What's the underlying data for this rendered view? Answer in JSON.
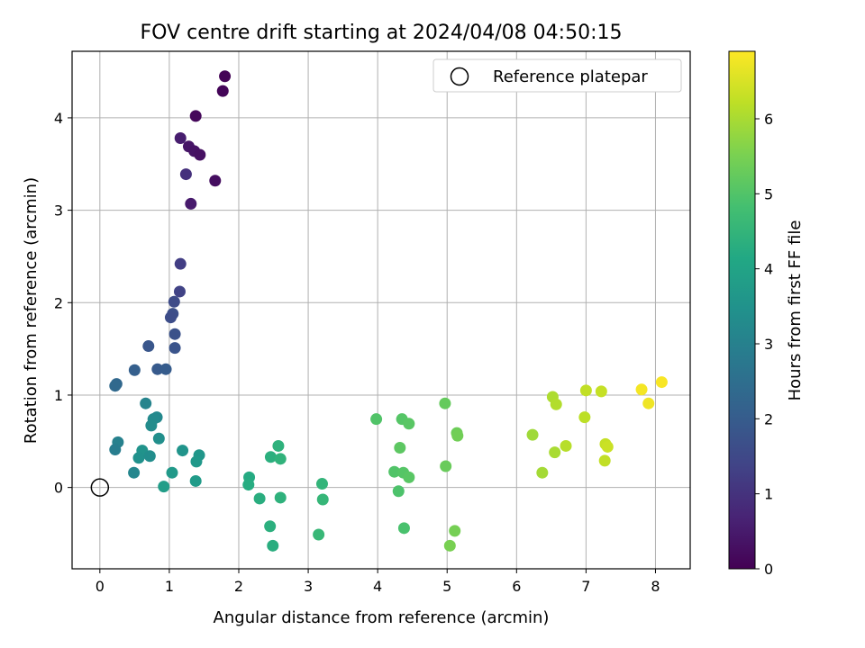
{
  "chart_data": {
    "type": "scatter",
    "title": "FOV centre drift starting at 2024/04/08 04:50:15",
    "xlabel": "Angular distance from reference (arcmin)",
    "ylabel": "Rotation from reference (arcmin)",
    "colorbar_label": "Hours from first FF file",
    "xlim": [
      -0.4,
      8.5
    ],
    "ylim": [
      -0.88,
      4.72
    ],
    "x_ticks": [
      0,
      1,
      2,
      3,
      4,
      5,
      6,
      7,
      8
    ],
    "y_ticks": [
      0,
      1,
      2,
      3,
      4
    ],
    "color_ticks": [
      0,
      1,
      2,
      3,
      4,
      5,
      6
    ],
    "color_range": [
      0,
      6.9
    ],
    "colormap": "viridis",
    "grid": true,
    "legend_position": "top-right",
    "reference": {
      "label": "Reference platepar",
      "x": 0,
      "y": 0
    },
    "points": [
      {
        "x": 1.8,
        "y": 4.45,
        "t": 0.05
      },
      {
        "x": 1.77,
        "y": 4.29,
        "t": 0.08
      },
      {
        "x": 1.38,
        "y": 4.02,
        "t": 0.12
      },
      {
        "x": 1.16,
        "y": 3.78,
        "t": 0.55
      },
      {
        "x": 1.28,
        "y": 3.69,
        "t": 0.4
      },
      {
        "x": 1.36,
        "y": 3.64,
        "t": 0.35
      },
      {
        "x": 1.44,
        "y": 3.6,
        "t": 0.3
      },
      {
        "x": 1.66,
        "y": 3.32,
        "t": 0.25
      },
      {
        "x": 1.24,
        "y": 3.39,
        "t": 0.95
      },
      {
        "x": 1.31,
        "y": 3.07,
        "t": 0.5
      },
      {
        "x": 1.16,
        "y": 2.42,
        "t": 1.25
      },
      {
        "x": 1.15,
        "y": 2.12,
        "t": 1.35
      },
      {
        "x": 1.07,
        "y": 2.01,
        "t": 1.55
      },
      {
        "x": 1.05,
        "y": 1.88,
        "t": 1.65
      },
      {
        "x": 1.02,
        "y": 1.84,
        "t": 1.6
      },
      {
        "x": 1.08,
        "y": 1.66,
        "t": 1.75
      },
      {
        "x": 0.7,
        "y": 1.53,
        "t": 1.85
      },
      {
        "x": 1.08,
        "y": 1.51,
        "t": 1.8
      },
      {
        "x": 0.5,
        "y": 1.27,
        "t": 2.1
      },
      {
        "x": 0.83,
        "y": 1.28,
        "t": 1.95
      },
      {
        "x": 0.95,
        "y": 1.28,
        "t": 2.0
      },
      {
        "x": 0.24,
        "y": 1.12,
        "t": 2.3
      },
      {
        "x": 0.22,
        "y": 1.1,
        "t": 2.35
      },
      {
        "x": 0.66,
        "y": 0.91,
        "t": 3.1
      },
      {
        "x": 0.82,
        "y": 0.76,
        "t": 3.2
      },
      {
        "x": 0.77,
        "y": 0.74,
        "t": 3.25
      },
      {
        "x": 0.74,
        "y": 0.67,
        "t": 3.3
      },
      {
        "x": 0.85,
        "y": 0.53,
        "t": 3.4
      },
      {
        "x": 0.26,
        "y": 0.49,
        "t": 3.0
      },
      {
        "x": 0.22,
        "y": 0.41,
        "t": 2.9
      },
      {
        "x": 0.61,
        "y": 0.4,
        "t": 3.5
      },
      {
        "x": 0.56,
        "y": 0.32,
        "t": 3.45
      },
      {
        "x": 0.72,
        "y": 0.34,
        "t": 3.35
      },
      {
        "x": 0.49,
        "y": 0.16,
        "t": 3.15
      },
      {
        "x": 1.19,
        "y": 0.4,
        "t": 3.55
      },
      {
        "x": 1.43,
        "y": 0.35,
        "t": 3.6
      },
      {
        "x": 1.39,
        "y": 0.28,
        "t": 3.65
      },
      {
        "x": 1.04,
        "y": 0.16,
        "t": 3.7
      },
      {
        "x": 1.38,
        "y": 0.07,
        "t": 3.75
      },
      {
        "x": 0.92,
        "y": 0.01,
        "t": 3.8
      },
      {
        "x": 2.15,
        "y": 0.11,
        "t": 4.2
      },
      {
        "x": 2.14,
        "y": 0.03,
        "t": 4.25
      },
      {
        "x": 2.3,
        "y": -0.12,
        "t": 4.3
      },
      {
        "x": 2.46,
        "y": 0.33,
        "t": 4.35
      },
      {
        "x": 2.57,
        "y": 0.45,
        "t": 4.4
      },
      {
        "x": 2.6,
        "y": 0.31,
        "t": 4.45
      },
      {
        "x": 2.6,
        "y": -0.11,
        "t": 4.4
      },
      {
        "x": 2.45,
        "y": -0.42,
        "t": 4.35
      },
      {
        "x": 2.49,
        "y": -0.63,
        "t": 4.3
      },
      {
        "x": 3.2,
        "y": 0.04,
        "t": 4.5
      },
      {
        "x": 3.21,
        "y": -0.13,
        "t": 4.55
      },
      {
        "x": 3.15,
        "y": -0.51,
        "t": 4.6
      },
      {
        "x": 3.98,
        "y": 0.74,
        "t": 5.0
      },
      {
        "x": 4.35,
        "y": 0.74,
        "t": 5.05
      },
      {
        "x": 4.45,
        "y": 0.69,
        "t": 5.1
      },
      {
        "x": 4.32,
        "y": 0.43,
        "t": 5.15
      },
      {
        "x": 4.24,
        "y": 0.17,
        "t": 5.0
      },
      {
        "x": 4.37,
        "y": 0.16,
        "t": 5.05
      },
      {
        "x": 4.45,
        "y": 0.11,
        "t": 5.1
      },
      {
        "x": 4.3,
        "y": -0.04,
        "t": 4.95
      },
      {
        "x": 4.38,
        "y": -0.44,
        "t": 4.9
      },
      {
        "x": 4.97,
        "y": 0.91,
        "t": 5.25
      },
      {
        "x": 5.14,
        "y": 0.59,
        "t": 5.35
      },
      {
        "x": 5.15,
        "y": 0.56,
        "t": 5.4
      },
      {
        "x": 4.98,
        "y": 0.23,
        "t": 5.3
      },
      {
        "x": 5.11,
        "y": -0.47,
        "t": 5.45
      },
      {
        "x": 5.04,
        "y": -0.63,
        "t": 5.5
      },
      {
        "x": 6.23,
        "y": 0.57,
        "t": 5.9
      },
      {
        "x": 6.52,
        "y": 0.98,
        "t": 6.05
      },
      {
        "x": 6.57,
        "y": 0.9,
        "t": 6.1
      },
      {
        "x": 6.55,
        "y": 0.38,
        "t": 6.0
      },
      {
        "x": 6.71,
        "y": 0.45,
        "t": 6.15
      },
      {
        "x": 6.37,
        "y": 0.16,
        "t": 5.95
      },
      {
        "x": 7.0,
        "y": 1.05,
        "t": 6.25
      },
      {
        "x": 7.22,
        "y": 1.04,
        "t": 6.3
      },
      {
        "x": 6.98,
        "y": 0.76,
        "t": 6.2
      },
      {
        "x": 7.28,
        "y": 0.47,
        "t": 6.3
      },
      {
        "x": 7.31,
        "y": 0.44,
        "t": 6.35
      },
      {
        "x": 7.27,
        "y": 0.29,
        "t": 6.25
      },
      {
        "x": 7.8,
        "y": 1.06,
        "t": 6.8
      },
      {
        "x": 8.09,
        "y": 1.14,
        "t": 6.85
      },
      {
        "x": 7.9,
        "y": 0.91,
        "t": 6.75
      }
    ]
  }
}
